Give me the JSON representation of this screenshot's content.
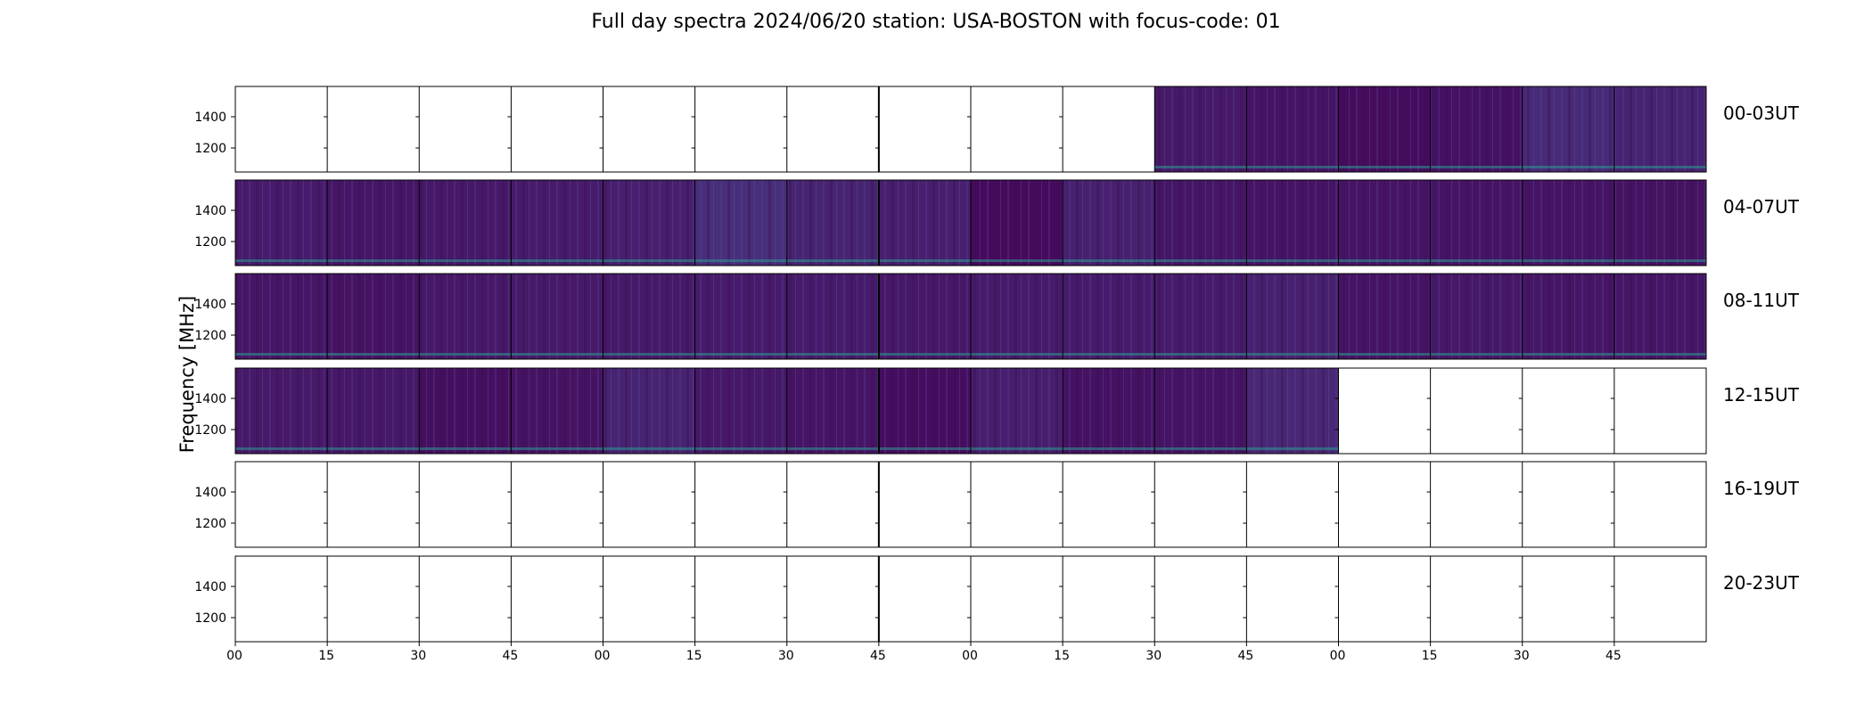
{
  "chart_data": {
    "type": "heatmap",
    "title": "Full day spectra 2024/06/20 station: USA-BOSTON with focus-code: 01",
    "ylabel": "Frequency [MHz]",
    "xlabel": "",
    "y_ticks": [
      "1400",
      "1200"
    ],
    "x_ticks": [
      "00",
      "15",
      "30",
      "45",
      "00",
      "15",
      "30",
      "45",
      "00",
      "15",
      "30",
      "45",
      "00",
      "15",
      "30",
      "45"
    ],
    "colormap": "viridis",
    "colors": {
      "empty": "#ffffff",
      "dark": "#440154",
      "mid": "#482d7a",
      "bright": "#3f5c91",
      "line": "#2a9a8f"
    },
    "rows": [
      {
        "label": "00-03UT",
        "panels": [
          null,
          null,
          null,
          null,
          null,
          null,
          null,
          null,
          null,
          null,
          0.28,
          0.22,
          0.12,
          0.18,
          0.48,
          0.4
        ]
      },
      {
        "label": "04-07UT",
        "panels": [
          0.3,
          0.24,
          0.26,
          0.3,
          0.34,
          0.52,
          0.4,
          0.34,
          0.1,
          0.36,
          0.24,
          0.22,
          0.22,
          0.22,
          0.22,
          0.2
        ]
      },
      {
        "label": "08-11UT",
        "panels": [
          0.24,
          0.2,
          0.26,
          0.28,
          0.28,
          0.3,
          0.3,
          0.26,
          0.3,
          0.3,
          0.3,
          0.36,
          0.22,
          0.26,
          0.24,
          0.24
        ]
      },
      {
        "label": "12-15UT",
        "panels": [
          0.28,
          0.26,
          0.16,
          0.2,
          0.4,
          0.26,
          0.22,
          0.14,
          0.34,
          0.18,
          0.22,
          0.44,
          null,
          null,
          null,
          null
        ]
      },
      {
        "label": "16-19UT",
        "panels": [
          null,
          null,
          null,
          null,
          null,
          null,
          null,
          null,
          null,
          null,
          null,
          null,
          null,
          null,
          null,
          null
        ]
      },
      {
        "label": "20-23UT",
        "panels": [
          null,
          null,
          null,
          null,
          null,
          null,
          null,
          null,
          null,
          null,
          null,
          null,
          null,
          null,
          null,
          null
        ]
      }
    ]
  }
}
